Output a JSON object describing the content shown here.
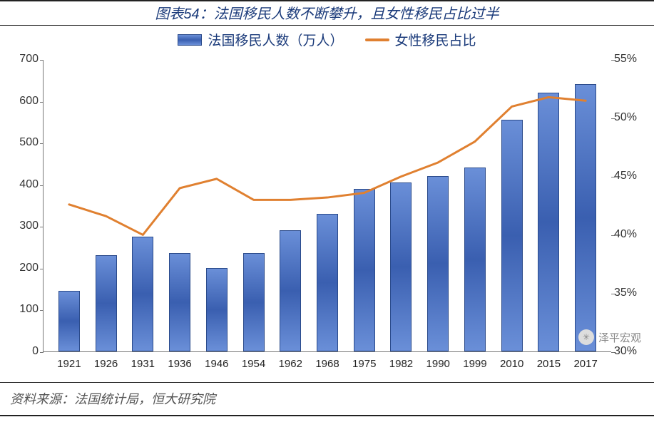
{
  "title": "图表54：法国移民人数不断攀升，且女性移民占比过半",
  "source": "资料来源：法国统计局，恒大研究院",
  "watermark": "泽平宏观",
  "legend": {
    "bars": "法国移民人数（万人）",
    "line": "女性移民占比"
  },
  "chart": {
    "type": "bar+line",
    "categories": [
      "1921",
      "1926",
      "1931",
      "1936",
      "1946",
      "1954",
      "1962",
      "1968",
      "1975",
      "1982",
      "1990",
      "1999",
      "2010",
      "2015",
      "2017"
    ],
    "bar_values": [
      145,
      230,
      275,
      235,
      200,
      235,
      290,
      330,
      390,
      405,
      420,
      440,
      555,
      620,
      640
    ],
    "line_values_pct": [
      42.6,
      41.6,
      40.0,
      44.0,
      44.8,
      43.0,
      43.0,
      43.2,
      43.6,
      45.0,
      46.2,
      48.0,
      51.0,
      51.8,
      51.5
    ],
    "left_axis": {
      "min": 0,
      "max": 700,
      "step": 100,
      "label": ""
    },
    "right_axis": {
      "min": 30,
      "max": 55,
      "step": 5,
      "suffix": "%"
    },
    "bar_color_top": "#6a8fd8",
    "bar_color_mid": "#3a5fb0",
    "bar_border": "#2a4a8a",
    "line_color": "#e08030",
    "line_width": 3,
    "background": "#ffffff",
    "font_color": "#1a3a7a",
    "title_fontsize": 20,
    "axis_fontsize": 16,
    "legend_fontsize": 19
  }
}
